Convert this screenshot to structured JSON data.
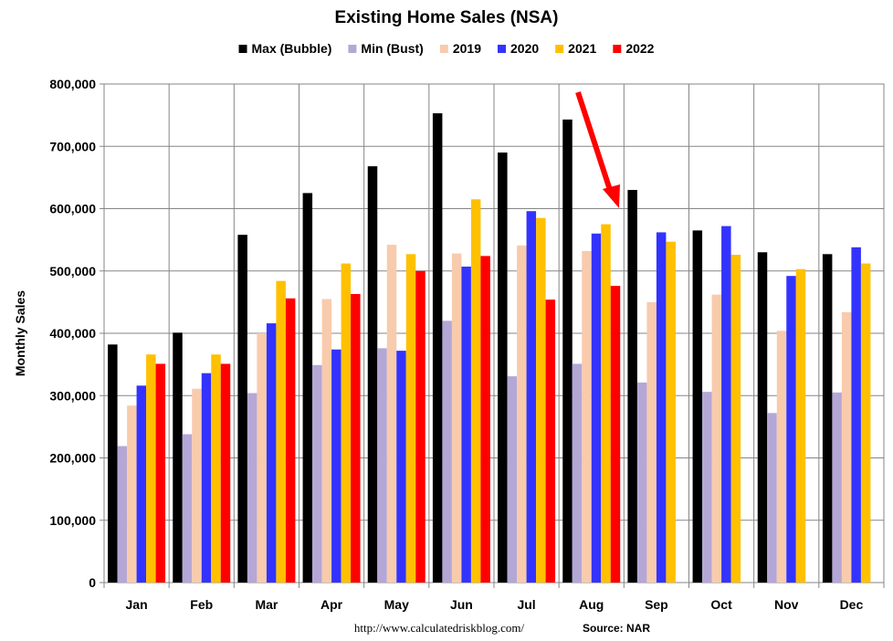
{
  "chart_data": {
    "type": "bar",
    "title": "Existing Home Sales (NSA)",
    "xlabel": "",
    "ylabel": "Monthly Sales",
    "ylim": [
      0,
      800000
    ],
    "yticks": [
      "0",
      "100,000",
      "200,000",
      "300,000",
      "400,000",
      "500,000",
      "600,000",
      "700,000",
      "800,000"
    ],
    "categories": [
      "Jan",
      "Feb",
      "Mar",
      "Apr",
      "May",
      "Jun",
      "Jul",
      "Aug",
      "Sep",
      "Oct",
      "Nov",
      "Dec"
    ],
    "legend_position": "top",
    "grid": "both",
    "series": [
      {
        "name": "Max (Bubble)",
        "color": "#000000",
        "values": [
          382000,
          401000,
          558000,
          625000,
          668000,
          753000,
          690000,
          743000,
          630000,
          565000,
          530000,
          527000
        ]
      },
      {
        "name": "Min (Bust)",
        "color": "#B4A7D6",
        "values": [
          219000,
          238000,
          304000,
          349000,
          376000,
          420000,
          331000,
          351000,
          321000,
          306000,
          272000,
          305000
        ]
      },
      {
        "name": "2019",
        "color": "#F8CBAD",
        "values": [
          284000,
          311000,
          400000,
          455000,
          542000,
          528000,
          541000,
          532000,
          450000,
          462000,
          404000,
          434000
        ]
      },
      {
        "name": "2020",
        "color": "#3333FF",
        "values": [
          316000,
          336000,
          416000,
          374000,
          372000,
          507000,
          596000,
          560000,
          562000,
          572000,
          492000,
          538000
        ]
      },
      {
        "name": "2021",
        "color": "#FFC000",
        "values": [
          366000,
          366000,
          484000,
          512000,
          527000,
          615000,
          585000,
          575000,
          547000,
          526000,
          503000,
          512000
        ]
      },
      {
        "name": "2022",
        "color": "#FF0000",
        "values": [
          351000,
          351000,
          456000,
          463000,
          500000,
          524000,
          454000,
          476000,
          null,
          null,
          null,
          null
        ]
      }
    ],
    "annotation_arrow_color": "#FF0000"
  },
  "footer": {
    "url": "http://www.calculatedriskblog.com/",
    "source": "Source: NAR"
  }
}
